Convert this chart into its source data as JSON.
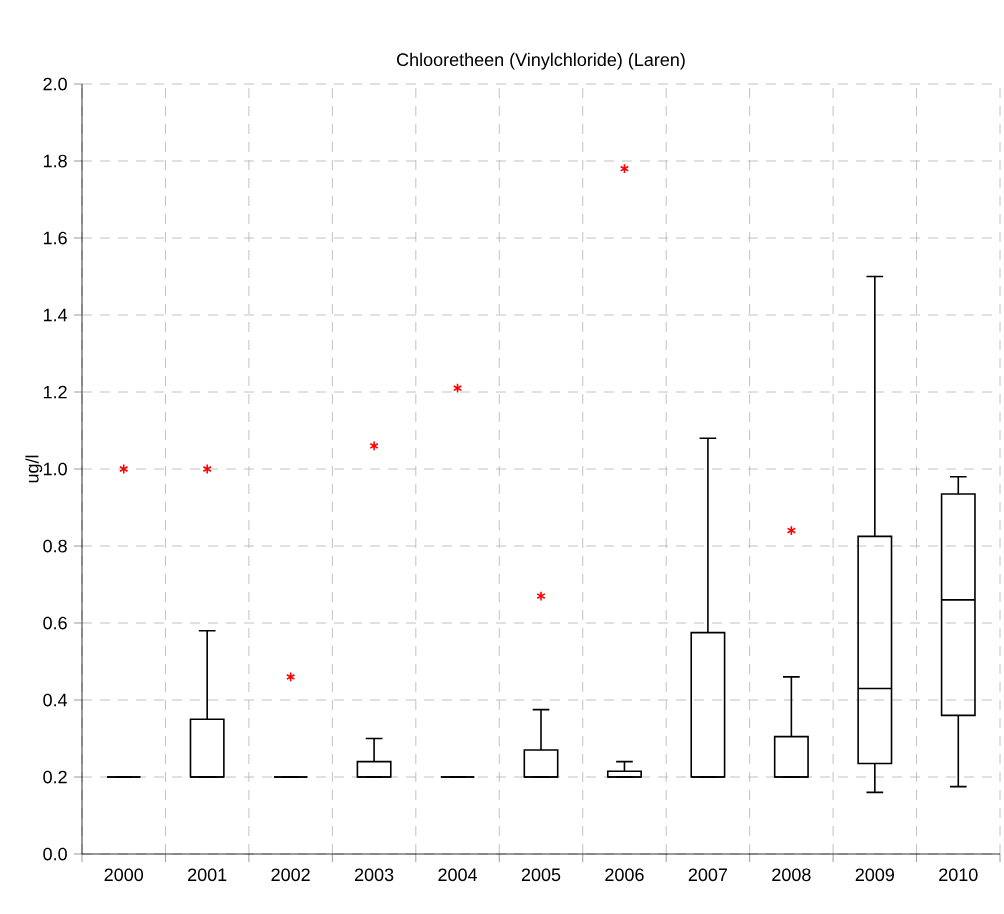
{
  "chart_data": {
    "type": "box",
    "title": "Chlooretheen (Vinylchloride) (Laren)",
    "ylabel": "ug/l",
    "categories": [
      "2000",
      "2001",
      "2002",
      "2003",
      "2004",
      "2005",
      "2006",
      "2007",
      "2008",
      "2009",
      "2010"
    ],
    "series": [
      {
        "color": "#000000",
        "boxes": [
          {
            "low": 0.2,
            "q1": 0.2,
            "median": 0.2,
            "q3": 0.2,
            "high": 0.2,
            "outliers": [
              1.0
            ]
          },
          {
            "low": 0.2,
            "q1": 0.2,
            "median": 0.2,
            "q3": 0.35,
            "high": 0.58,
            "outliers": [
              1.0
            ]
          },
          {
            "low": 0.2,
            "q1": 0.2,
            "median": 0.2,
            "q3": 0.2,
            "high": 0.2,
            "outliers": [
              0.46
            ]
          },
          {
            "low": 0.2,
            "q1": 0.2,
            "median": 0.2,
            "q3": 0.24,
            "high": 0.3,
            "outliers": [
              1.06
            ]
          },
          {
            "low": 0.2,
            "q1": 0.2,
            "median": 0.2,
            "q3": 0.2,
            "high": 0.2,
            "outliers": [
              1.21
            ]
          },
          {
            "low": 0.2,
            "q1": 0.2,
            "median": 0.2,
            "q3": 0.27,
            "high": 0.375,
            "outliers": [
              0.67
            ]
          },
          {
            "low": 0.2,
            "q1": 0.2,
            "median": 0.2,
            "q3": 0.215,
            "high": 0.24,
            "outliers": [
              1.78
            ]
          },
          {
            "low": 0.2,
            "q1": 0.2,
            "median": 0.2,
            "q3": 0.575,
            "high": 1.08
          },
          {
            "low": 0.2,
            "q1": 0.2,
            "median": 0.2,
            "q3": 0.305,
            "high": 0.46,
            "outliers": [
              0.84
            ]
          },
          {
            "low": 0.16,
            "q1": 0.235,
            "median": 0.43,
            "q3": 0.825,
            "high": 1.5
          },
          {
            "low": 0.175,
            "q1": 0.36,
            "median": 0.66,
            "q3": 0.935,
            "high": 0.98
          }
        ]
      }
    ],
    "ylim": [
      0,
      2
    ],
    "yticks": [
      {
        "value": 0,
        "label": "0.0"
      },
      {
        "value": 0.2,
        "label": "0.2"
      },
      {
        "value": 0.4,
        "label": "0.4"
      },
      {
        "value": 0.6,
        "label": "0.6"
      },
      {
        "value": 0.8,
        "label": "0.8"
      },
      {
        "value": 1.0,
        "label": "1.0"
      },
      {
        "value": 1.2,
        "label": "1.2"
      },
      {
        "value": 1.4,
        "label": "1.4"
      },
      {
        "value": 1.6,
        "label": "1.6"
      },
      {
        "value": 1.8,
        "label": "1.8"
      },
      {
        "value": 2.0,
        "label": "2.0"
      }
    ],
    "grid": true,
    "marker": "star"
  }
}
